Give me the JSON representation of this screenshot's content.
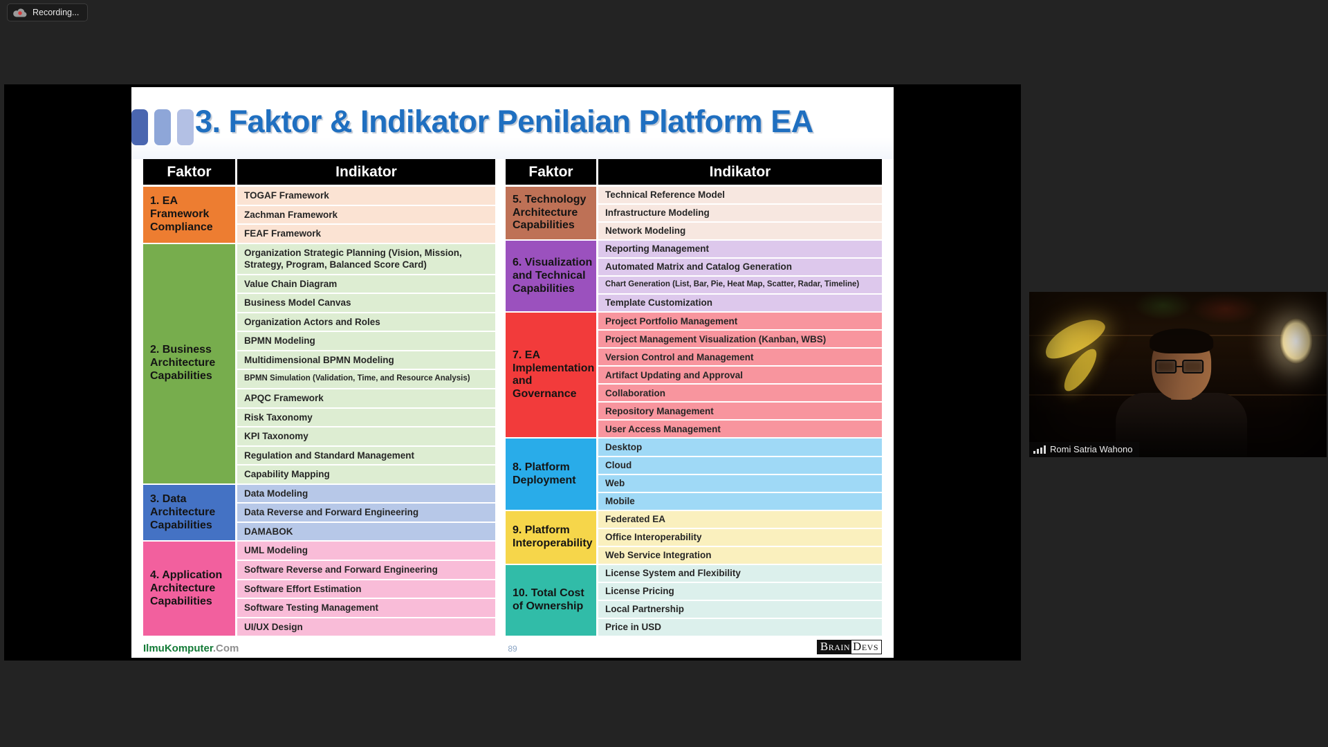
{
  "meeting": {
    "recording_label": "Recording...",
    "participant_name": "Romi Satria Wahono"
  },
  "slide": {
    "title": "3. Faktor & Indikator Penilaian Platform EA",
    "page_number": "89",
    "footer": {
      "site_bold": "IlmuKomputer",
      "site_suffix": ".Com",
      "logo_left_word": "Brain",
      "logo_right_word": "Devs"
    },
    "accent_colors": {
      "title_blue": "#1F6FC0",
      "site_green": "#127A36",
      "header_bg": "#000000"
    },
    "table_headers": {
      "faktor": "Faktor",
      "indikator": "Indikator"
    },
    "tables": [
      {
        "groups": [
          {
            "factor": "1. EA Framework Compliance",
            "factor_bg": "#ED7D31",
            "row_bg": "#FBE3D3",
            "indicators": [
              "TOGAF Framework",
              "Zachman Framework",
              "FEAF Framework"
            ]
          },
          {
            "factor": "2. Business Architecture Capabilities",
            "factor_bg": "#77AD4D",
            "row_bg": "#DDEDD2",
            "indicators": [
              "Organization Strategic Planning (Vision, Mission, Strategy, Program, Balanced Score Card)",
              "Value Chain Diagram",
              "Business Model Canvas",
              "Organization Actors and Roles",
              "BPMN Modeling",
              "Multidimensional BPMN Modeling",
              "BPMN Simulation (Validation, Time, and Resource Analysis)",
              "APQC Framework",
              "Risk Taxonomy",
              "KPI Taxonomy",
              "Regulation and Standard Management",
              "Capability Mapping"
            ]
          },
          {
            "factor": "3. Data Architecture Capabilities",
            "factor_bg": "#4472C4",
            "row_bg": "#B7C8E8",
            "indicators": [
              "Data Modeling",
              "Data Reverse and Forward Engineering",
              "DAMABOK"
            ]
          },
          {
            "factor": "4. Application Architecture Capabilities",
            "factor_bg": "#F2609E",
            "row_bg": "#F9BCD8",
            "indicators": [
              "UML Modeling",
              "Software Reverse and Forward Engineering",
              "Software Effort Estimation",
              "Software Testing Management",
              "UI/UX Design"
            ]
          }
        ]
      },
      {
        "groups": [
          {
            "factor": "5. Technology Architecture Capabilities",
            "factor_bg": "#BE7156",
            "row_bg": "#F7E7E0",
            "indicators": [
              "Technical Reference Model",
              "Infrastructure Modeling",
              "Network Modeling"
            ]
          },
          {
            "factor": "6. Visualization and Technical Capabilities",
            "factor_bg": "#9B51BE",
            "row_bg": "#DDC8EC",
            "indicators": [
              "Reporting Management",
              "Automated Matrix and Catalog Generation",
              "Chart Generation (List, Bar, Pie, Heat Map, Scatter, Radar, Timeline)",
              "Template Customization"
            ]
          },
          {
            "factor": "7. EA Implementation and Governance",
            "factor_bg": "#F23B3B",
            "row_bg": "#F8959E",
            "indicators": [
              "Project Portfolio Management",
              "Project Management Visualization (Kanban, WBS)",
              "Version Control and Management",
              "Artifact Updating and Approval",
              "Collaboration",
              "Repository Management",
              "User Access Management"
            ]
          },
          {
            "factor": "8. Platform Deployment",
            "factor_bg": "#29ACE9",
            "row_bg": "#9FD9F6",
            "indicators": [
              "Desktop",
              "Cloud",
              "Web",
              "Mobile"
            ]
          },
          {
            "factor": "9. Platform Interoperability",
            "factor_bg": "#F6D64A",
            "row_bg": "#FAF0BE",
            "indicators": [
              "Federated EA",
              "Office Interoperability",
              "Web Service Integration"
            ]
          },
          {
            "factor": "10. Total Cost of Ownership",
            "factor_bg": "#31BCA8",
            "row_bg": "#DCF0EC",
            "indicators": [
              "License System and Flexibility",
              "License Pricing",
              "Local Partnership",
              "Price in USD"
            ]
          }
        ]
      }
    ]
  }
}
